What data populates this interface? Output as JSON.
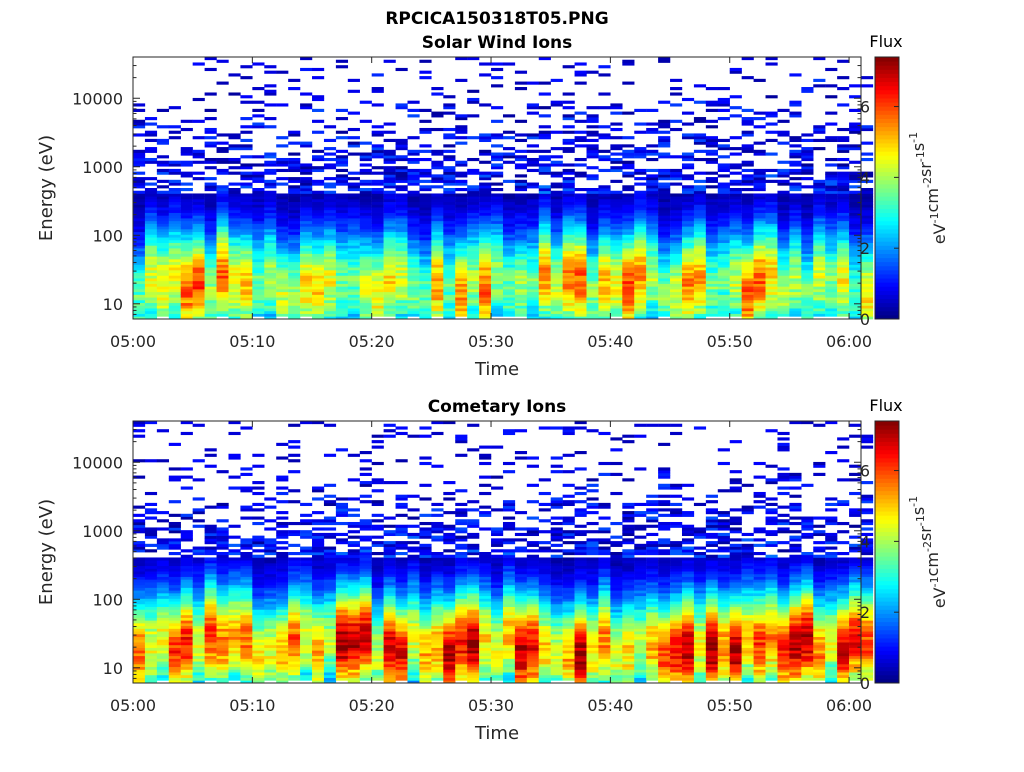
{
  "figure": {
    "title": "RPCICA150318T05.PNG"
  },
  "chart_data": [
    {
      "type": "heatmap",
      "title": "Solar Wind Ions",
      "xlabel": "Time",
      "ylabel": "Energy (eV)",
      "x_ticks": [
        "05:00",
        "05:10",
        "05:20",
        "05:30",
        "05:40",
        "05:50",
        "06:00"
      ],
      "x_range": [
        "05:00",
        "06:01"
      ],
      "y_ticks": [
        "10",
        "100",
        "1000",
        "10000"
      ],
      "y_scale": "log",
      "y_range": [
        6,
        40000
      ],
      "colorbar": {
        "title": "Flux",
        "label": "eV-1cm-2sr-1s-1",
        "ticks": [
          "0",
          "2",
          "4",
          "6"
        ],
        "range": [
          0,
          7.4
        ],
        "colormap": "jet"
      },
      "profile": {
        "peak_log_energy": 1.28,
        "peak_flux": 4.6,
        "high_energy_extent_log": 4.55,
        "low_cutoff_log": 0.8
      }
    },
    {
      "type": "heatmap",
      "title": "Cometary Ions",
      "xlabel": "Time",
      "ylabel": "Energy (eV)",
      "x_ticks": [
        "05:00",
        "05:10",
        "05:20",
        "05:30",
        "05:40",
        "05:50",
        "06:00"
      ],
      "x_range": [
        "05:00",
        "06:01"
      ],
      "y_ticks": [
        "10",
        "100",
        "1000",
        "10000"
      ],
      "y_scale": "log",
      "y_range": [
        6,
        40000
      ],
      "colorbar": {
        "title": "Flux",
        "label": "eV-1cm-2sr-1s-1",
        "ticks": [
          "0",
          "2",
          "4",
          "6"
        ],
        "range": [
          0,
          7.4
        ],
        "colormap": "jet"
      },
      "profile": {
        "peak_log_energy": 1.35,
        "peak_flux": 5.6,
        "high_energy_extent_log": 4.1,
        "low_cutoff_log": 0.8
      }
    }
  ]
}
